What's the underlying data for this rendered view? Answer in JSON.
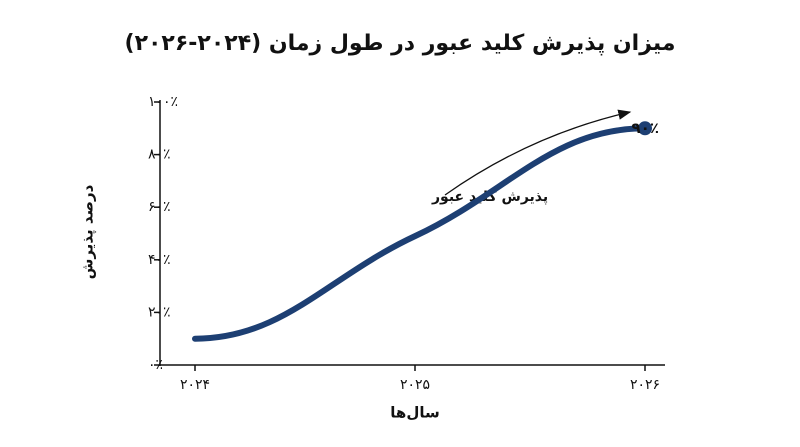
{
  "chart_data": {
    "type": "line",
    "title": "میزان پذیرش کلید عبور در طول زمان (۲۰۲۴-۲۰۲۶)",
    "x_label": "سال‌ها",
    "y_label": "درصد پذیرش",
    "categories": [
      "۲۰۲۴",
      "۲۰۲۵",
      "۲۰۲۶"
    ],
    "series": [
      {
        "name": "پذیرش کلید عبور",
        "color": "#1d3f73",
        "values": [
          10,
          49,
          90
        ],
        "value_labels": [
          null,
          null,
          "۹۰٪"
        ]
      }
    ],
    "ylim": [
      0,
      100
    ],
    "yticks": [
      {
        "value": 0,
        "label": "۰٪"
      },
      {
        "value": 20,
        "label": "۲۰٪"
      },
      {
        "value": 40,
        "label": "۴۰٪"
      },
      {
        "value": 60,
        "label": "۶۰٪"
      },
      {
        "value": 80,
        "label": "۸۰٪"
      },
      {
        "value": 100,
        "label": "۱۰۰٪"
      }
    ],
    "grid": false
  }
}
